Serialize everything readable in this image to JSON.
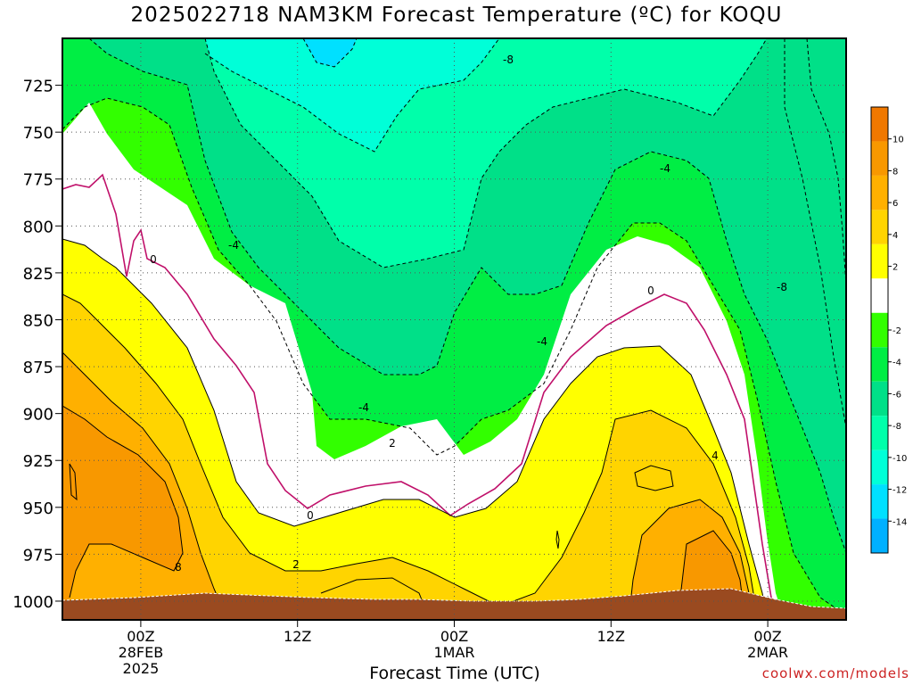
{
  "title": "2025022718 NAM3KM Forecast Temperature (ºC) for KOQU",
  "x_axis_label": "Forecast Time (UTC)",
  "credit": "coolwx.com/models",
  "chart_data": {
    "type": "heatmap",
    "title": "2025022718 NAM3KM Forecast Temperature (ºC) for KOQU",
    "xlabel": "Forecast Time (UTC)",
    "ylabel": "",
    "y_ticks": [
      725,
      750,
      775,
      800,
      825,
      850,
      875,
      900,
      925,
      950,
      975,
      1000
    ],
    "ylim": [
      1010,
      700
    ],
    "x_range_hours": [
      -5,
      45
    ],
    "x_ticks": [
      {
        "hour": 0,
        "lines": [
          "00Z",
          "28FEB",
          "2025"
        ]
      },
      {
        "hour": 10,
        "lines": [
          "12Z"
        ]
      },
      {
        "hour": 20,
        "lines": [
          "00Z",
          "1MAR"
        ]
      },
      {
        "hour": 30,
        "lines": [
          "12Z"
        ]
      },
      {
        "hour": 40,
        "lines": [
          "00Z",
          "2MAR"
        ]
      }
    ],
    "grid": true,
    "colorbar": {
      "labels": [
        10,
        8,
        6,
        4,
        2,
        -2,
        -4,
        -6,
        -8,
        -10,
        -12,
        -14
      ],
      "bands": [
        {
          "from": 10,
          "to": 12,
          "color": "#f07800"
        },
        {
          "from": 8,
          "to": 10,
          "color": "#f89800"
        },
        {
          "from": 6,
          "to": 8,
          "color": "#ffb000"
        },
        {
          "from": 4,
          "to": 6,
          "color": "#ffd400"
        },
        {
          "from": 2,
          "to": 4,
          "color": "#ffff00"
        },
        {
          "from": -2,
          "to": 2,
          "color": "#ffffff"
        },
        {
          "from": -4,
          "to": -2,
          "color": "#32ff00"
        },
        {
          "from": -6,
          "to": -4,
          "color": "#00ee44"
        },
        {
          "from": -8,
          "to": -6,
          "color": "#00e088"
        },
        {
          "from": -10,
          "to": -8,
          "color": "#00ffaa"
        },
        {
          "from": -12,
          "to": -10,
          "color": "#00ffd8"
        },
        {
          "from": -14,
          "to": -12,
          "color": "#00e0ff"
        },
        {
          "from": -16,
          "to": -14,
          "color": "#00b0ff"
        }
      ]
    },
    "contour_labels": [
      "-8",
      "-4",
      "0",
      "-4",
      "-4",
      "-8",
      "-4",
      "0",
      "-4",
      "2",
      "0",
      "2",
      "8",
      "4"
    ],
    "ground_color": "#9a4a20"
  }
}
